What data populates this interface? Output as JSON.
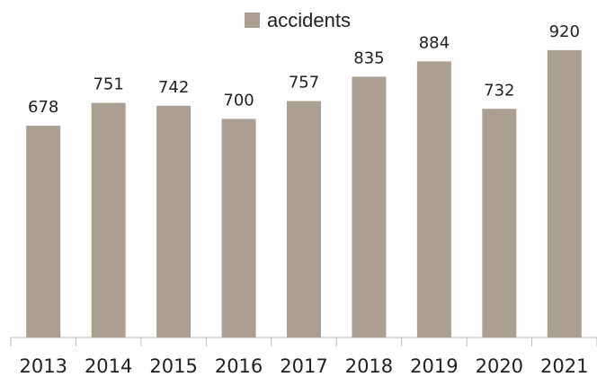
{
  "chart_data": {
    "type": "bar",
    "categories": [
      "2013",
      "2014",
      "2015",
      "2016",
      "2017",
      "2018",
      "2019",
      "2020",
      "2021"
    ],
    "series": [
      {
        "name": "accidents",
        "color": "#aa9f92",
        "values": [
          678,
          751,
          742,
          700,
          757,
          835,
          884,
          732,
          920
        ]
      }
    ],
    "ylim": [
      0,
      1000
    ],
    "legend": "top"
  }
}
